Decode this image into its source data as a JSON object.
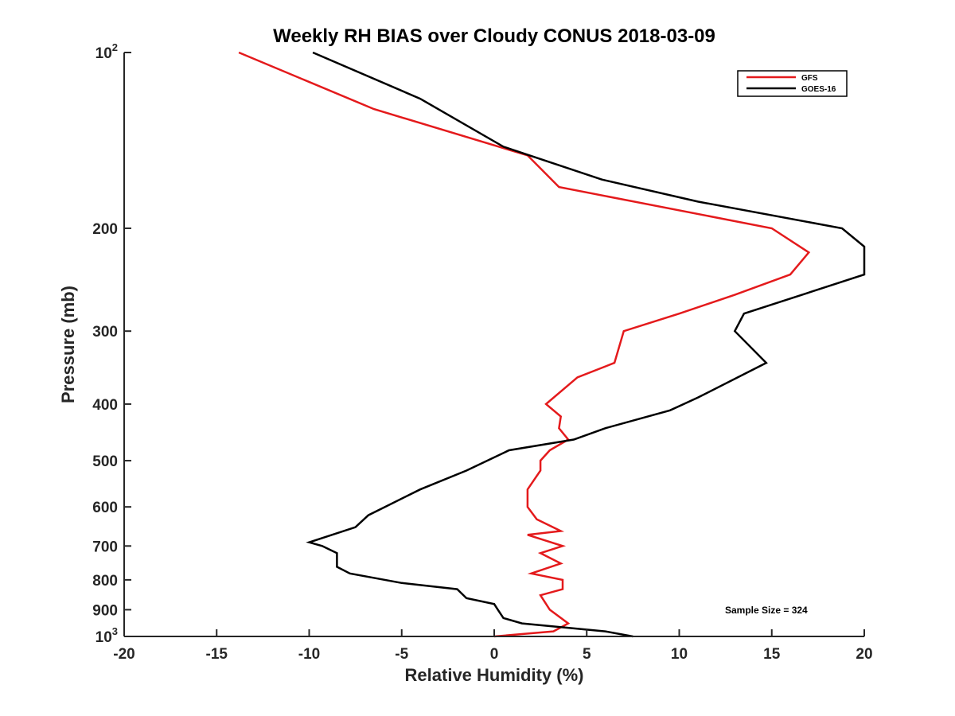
{
  "chart_data": {
    "type": "line",
    "title": "Weekly RH BIAS over Cloudy CONUS 2018-03-09",
    "xlabel": "Relative Humidity (%)",
    "ylabel": "Pressure (mb)",
    "xlim": [
      -20,
      20
    ],
    "ylim": [
      1000,
      100
    ],
    "y_scale": "log",
    "y_inverted": true,
    "grid": false,
    "legend_position": "top-right",
    "x_ticks": [
      {
        "value": -20,
        "label": "-20"
      },
      {
        "value": -15,
        "label": "-15"
      },
      {
        "value": -10,
        "label": "-10"
      },
      {
        "value": -5,
        "label": "-5"
      },
      {
        "value": 0,
        "label": "0"
      },
      {
        "value": 5,
        "label": "5"
      },
      {
        "value": 10,
        "label": "10"
      },
      {
        "value": 15,
        "label": "15"
      },
      {
        "value": 20,
        "label": "20"
      }
    ],
    "y_ticks": [
      {
        "value": 100,
        "base": "10",
        "exp": "2"
      },
      {
        "value": 200,
        "base": "200",
        "exp": ""
      },
      {
        "value": 300,
        "base": "300",
        "exp": ""
      },
      {
        "value": 400,
        "base": "400",
        "exp": ""
      },
      {
        "value": 500,
        "base": "500",
        "exp": ""
      },
      {
        "value": 600,
        "base": "600",
        "exp": ""
      },
      {
        "value": 700,
        "base": "700",
        "exp": ""
      },
      {
        "value": 800,
        "base": "800",
        "exp": ""
      },
      {
        "value": 900,
        "base": "900",
        "exp": ""
      },
      {
        "value": 1000,
        "base": "10",
        "exp": "3"
      }
    ],
    "series": [
      {
        "name": "GFS",
        "color": "#e41a1c",
        "points": [
          [
            -13.8,
            100
          ],
          [
            -6.5,
            125
          ],
          [
            1.8,
            150
          ],
          [
            3.5,
            170
          ],
          [
            15.0,
            200
          ],
          [
            17.0,
            220
          ],
          [
            16.0,
            240
          ],
          [
            13.0,
            260
          ],
          [
            10.0,
            280
          ],
          [
            7.0,
            300
          ],
          [
            6.5,
            340
          ],
          [
            4.5,
            360
          ],
          [
            2.8,
            400
          ],
          [
            3.6,
            420
          ],
          [
            3.5,
            440
          ],
          [
            4.0,
            460
          ],
          [
            3.0,
            480
          ],
          [
            2.5,
            500
          ],
          [
            2.5,
            520
          ],
          [
            1.8,
            560
          ],
          [
            1.8,
            600
          ],
          [
            2.3,
            630
          ],
          [
            3.6,
            660
          ],
          [
            1.8,
            670
          ],
          [
            3.7,
            700
          ],
          [
            2.5,
            720
          ],
          [
            3.6,
            750
          ],
          [
            2.0,
            780
          ],
          [
            3.7,
            800
          ],
          [
            3.7,
            830
          ],
          [
            2.5,
            850
          ],
          [
            3.0,
            900
          ],
          [
            4.0,
            950
          ],
          [
            3.2,
            980
          ],
          [
            0.0,
            1000
          ]
        ]
      },
      {
        "name": "GOES-16",
        "color": "#000000",
        "points": [
          [
            -9.8,
            100
          ],
          [
            -4.0,
            120
          ],
          [
            0.5,
            145
          ],
          [
            5.8,
            165
          ],
          [
            11.0,
            180
          ],
          [
            18.8,
            200
          ],
          [
            20.0,
            215
          ],
          [
            20.0,
            240
          ],
          [
            13.5,
            280
          ],
          [
            13.0,
            300
          ],
          [
            14.7,
            340
          ],
          [
            11.0,
            390
          ],
          [
            9.5,
            410
          ],
          [
            6.0,
            440
          ],
          [
            4.3,
            460
          ],
          [
            0.8,
            480
          ],
          [
            -1.5,
            520
          ],
          [
            -4.0,
            560
          ],
          [
            -6.8,
            620
          ],
          [
            -7.5,
            650
          ],
          [
            -10.0,
            690
          ],
          [
            -9.3,
            700
          ],
          [
            -8.5,
            720
          ],
          [
            -8.5,
            740
          ],
          [
            -8.5,
            760
          ],
          [
            -7.8,
            780
          ],
          [
            -5.0,
            810
          ],
          [
            -2.0,
            830
          ],
          [
            -1.5,
            860
          ],
          [
            0.0,
            880
          ],
          [
            0.2,
            900
          ],
          [
            0.5,
            930
          ],
          [
            1.5,
            950
          ],
          [
            6.0,
            980
          ],
          [
            7.5,
            1000
          ]
        ]
      }
    ],
    "annotations": [
      {
        "text": "Sample Size = 324"
      }
    ]
  }
}
